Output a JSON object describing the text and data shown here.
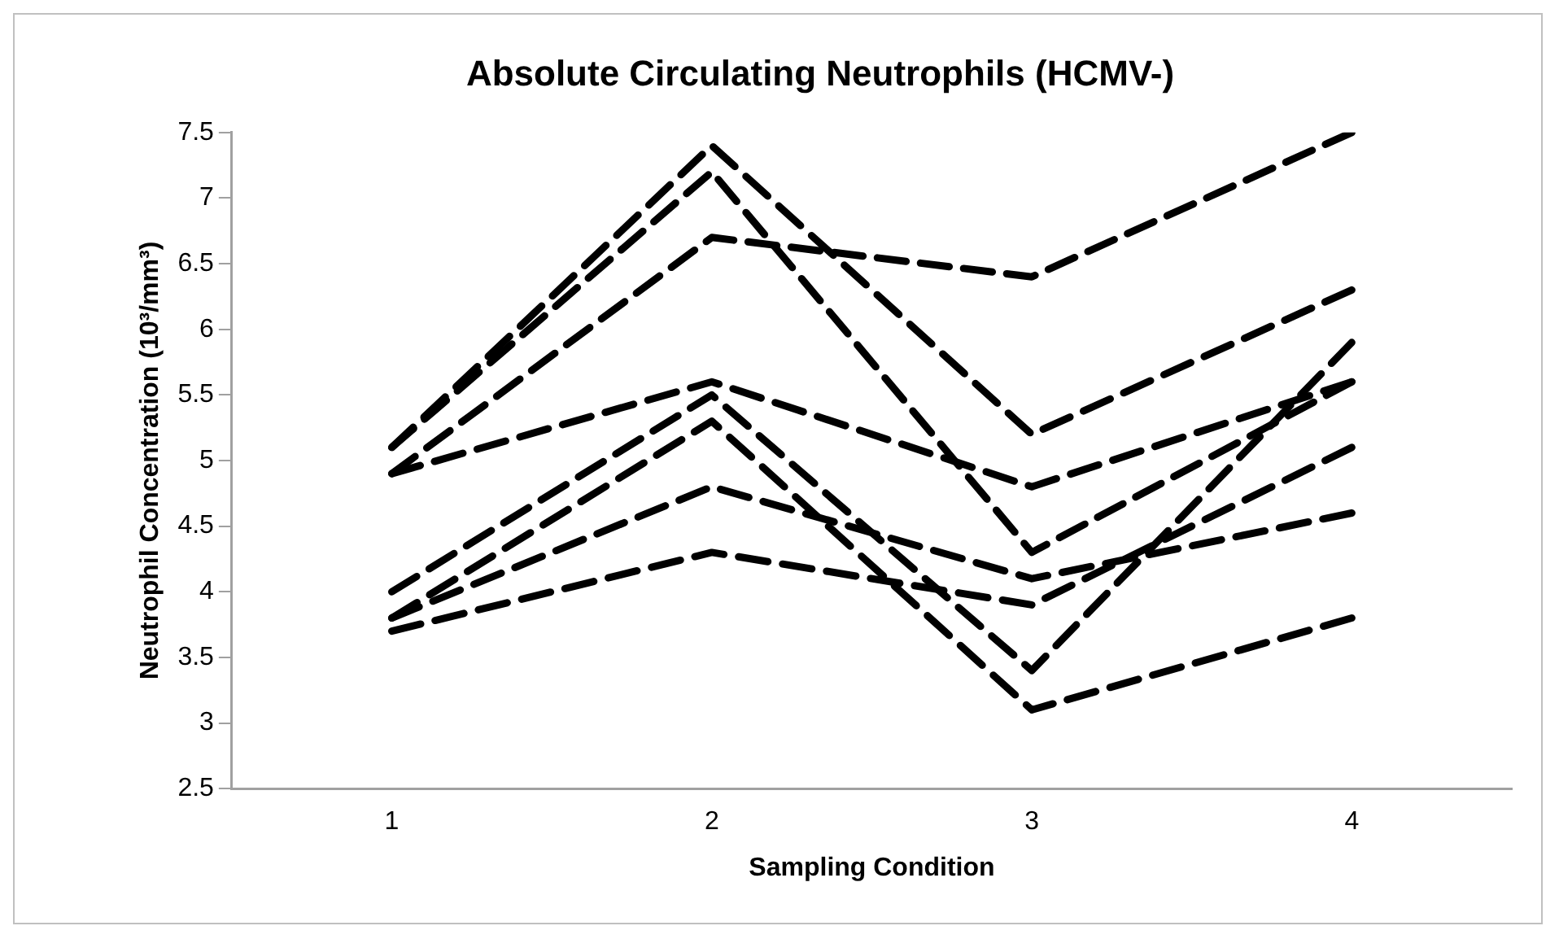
{
  "chart_data": {
    "type": "line",
    "title": "Absolute Circulating Neutrophils (HCMV-)",
    "xlabel": "Sampling Condition",
    "ylabel": "Neutrophil Concentration (10³/mm³)",
    "categories": [
      "1",
      "2",
      "3",
      "4"
    ],
    "series": [
      {
        "color": "#000000",
        "values": [
          4.9,
          6.7,
          6.4,
          7.5
        ]
      },
      {
        "color": "#000000",
        "values": [
          5.1,
          7.4,
          5.2,
          6.3
        ]
      },
      {
        "color": "#000000",
        "values": [
          5.1,
          7.2,
          4.3,
          5.6
        ]
      },
      {
        "color": "#000000",
        "values": [
          4.9,
          5.6,
          4.8,
          5.6
        ]
      },
      {
        "color": "#000000",
        "values": [
          4.0,
          5.5,
          3.4,
          5.9
        ]
      },
      {
        "color": "#000000",
        "values": [
          3.8,
          5.3,
          3.1,
          3.8
        ]
      },
      {
        "color": "#000000",
        "values": [
          3.8,
          4.8,
          4.1,
          4.6
        ]
      },
      {
        "color": "#000000",
        "values": [
          3.7,
          4.3,
          3.9,
          5.1
        ]
      }
    ],
    "ylim": [
      2.5,
      7.5
    ],
    "yticks": [
      2.5,
      3,
      3.5,
      4,
      4.5,
      5,
      5.5,
      6,
      6.5,
      7,
      7.5
    ],
    "grid": false,
    "legend": false,
    "marker": "none",
    "line_style": "dashed"
  }
}
